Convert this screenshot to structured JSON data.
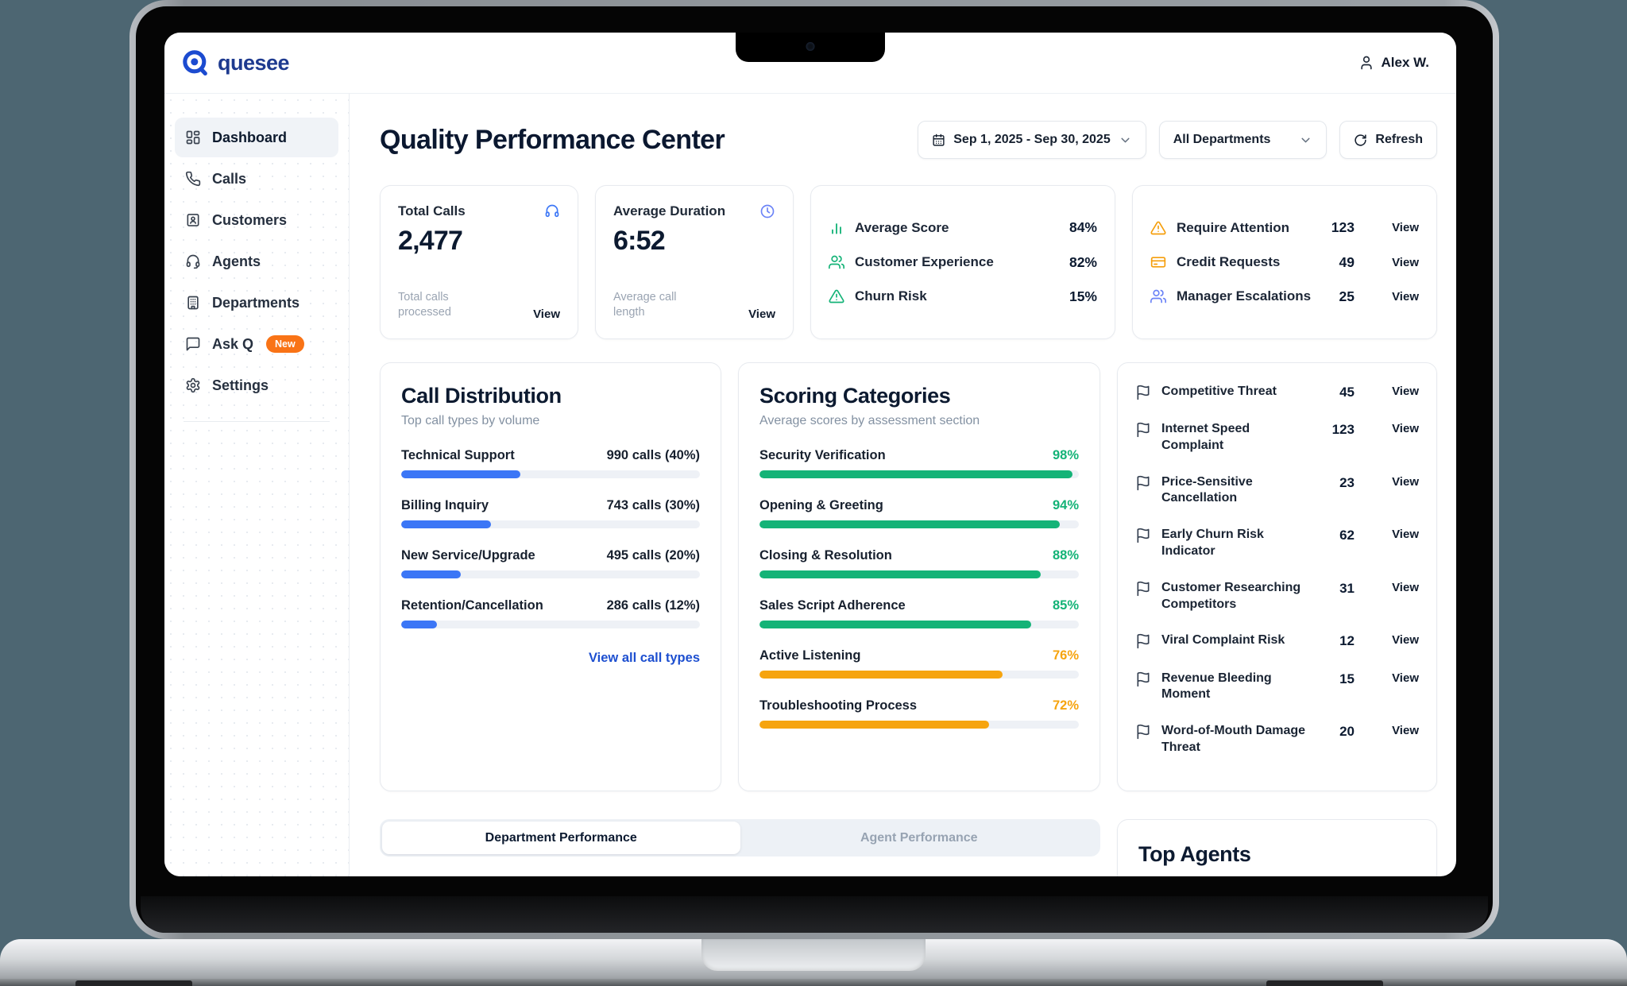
{
  "brand": {
    "name": "quesee"
  },
  "topbar": {
    "user_name": "Alex W."
  },
  "sidebar": {
    "items": [
      {
        "label": "Dashboard",
        "icon": "dashboard-icon"
      },
      {
        "label": "Calls",
        "icon": "phone-icon"
      },
      {
        "label": "Customers",
        "icon": "customer-card-icon"
      },
      {
        "label": "Agents",
        "icon": "headset-icon"
      },
      {
        "label": "Departments",
        "icon": "building-icon"
      },
      {
        "label": "Ask Q",
        "icon": "chat-bubble-icon",
        "badge": "New"
      },
      {
        "label": "Settings",
        "icon": "gear-icon"
      }
    ]
  },
  "header": {
    "title": "Quality Performance Center",
    "date_range": "Sep 1, 2025 - Sep 30, 2025",
    "department_filter": "All Departments",
    "refresh_label": "Refresh"
  },
  "stats": {
    "total_calls": {
      "label": "Total Calls",
      "value": "2,477",
      "description": "Total calls processed",
      "action": "View"
    },
    "average_duration": {
      "label": "Average Duration",
      "value": "6:52",
      "description": "Average call length",
      "action": "View"
    },
    "scores": [
      {
        "label": "Average Score",
        "value": "84%",
        "icon": "bar-chart-icon"
      },
      {
        "label": "Customer Experience",
        "value": "82%",
        "icon": "users-icon"
      },
      {
        "label": "Churn Risk",
        "value": "15%",
        "icon": "alert-triangle-icon"
      }
    ],
    "alerts": [
      {
        "label": "Require Attention",
        "count": "123",
        "action": "View",
        "icon": "alert-triangle-icon"
      },
      {
        "label": "Credit Requests",
        "count": "49",
        "action": "View",
        "icon": "credit-card-icon"
      },
      {
        "label": "Manager Escalations",
        "count": "25",
        "action": "View",
        "icon": "users-icon"
      }
    ]
  },
  "call_distribution": {
    "title": "Call Distribution",
    "subtitle": "Top call types by volume",
    "link": "View all call types",
    "items": [
      {
        "label": "Technical Support",
        "value": "990 calls (40%)",
        "percent": 40,
        "color": "#3b76f6"
      },
      {
        "label": "Billing Inquiry",
        "value": "743 calls (30%)",
        "percent": 30,
        "color": "#3b76f6"
      },
      {
        "label": "New Service/Upgrade",
        "value": "495 calls (20%)",
        "percent": 20,
        "color": "#3b76f6"
      },
      {
        "label": "Retention/Cancellation",
        "value": "286 calls (12%)",
        "percent": 12,
        "color": "#3b76f6"
      }
    ]
  },
  "scoring_categories": {
    "title": "Scoring Categories",
    "subtitle": "Average scores by assessment section",
    "items": [
      {
        "label": "Security Verification",
        "value": "98%",
        "percent": 98,
        "color": "#14b377"
      },
      {
        "label": "Opening & Greeting",
        "value": "94%",
        "percent": 94,
        "color": "#14b377"
      },
      {
        "label": "Closing & Resolution",
        "value": "88%",
        "percent": 88,
        "color": "#14b377"
      },
      {
        "label": "Sales Script Adherence",
        "value": "85%",
        "percent": 85,
        "color": "#14b377"
      },
      {
        "label": "Active Listening",
        "value": "76%",
        "percent": 76,
        "color": "#f6a40f"
      },
      {
        "label": "Troubleshooting Process",
        "value": "72%",
        "percent": 72,
        "color": "#f6a40f"
      }
    ]
  },
  "flags": {
    "items": [
      {
        "label": "Competitive Threat",
        "count": "45",
        "action": "View"
      },
      {
        "label": "Internet Speed Complaint",
        "count": "123",
        "action": "View"
      },
      {
        "label": "Price-Sensitive Cancellation",
        "count": "23",
        "action": "View"
      },
      {
        "label": "Early Churn Risk Indicator",
        "count": "62",
        "action": "View"
      },
      {
        "label": "Customer Researching Competitors",
        "count": "31",
        "action": "View"
      },
      {
        "label": "Viral Complaint Risk",
        "count": "12",
        "action": "View"
      },
      {
        "label": "Revenue Bleeding Moment",
        "count": "15",
        "action": "View"
      },
      {
        "label": "Word-of-Mouth Damage Threat",
        "count": "20",
        "action": "View"
      }
    ]
  },
  "tabs": {
    "department": "Department Performance",
    "agent": "Agent Performance"
  },
  "top_agents": {
    "title": "Top Agents"
  },
  "colors": {
    "accent_blue": "#3b76f6",
    "green": "#14b377",
    "orange": "#f6a40f",
    "badge_orange": "#f97316",
    "link_blue": "#1d4fd0"
  }
}
